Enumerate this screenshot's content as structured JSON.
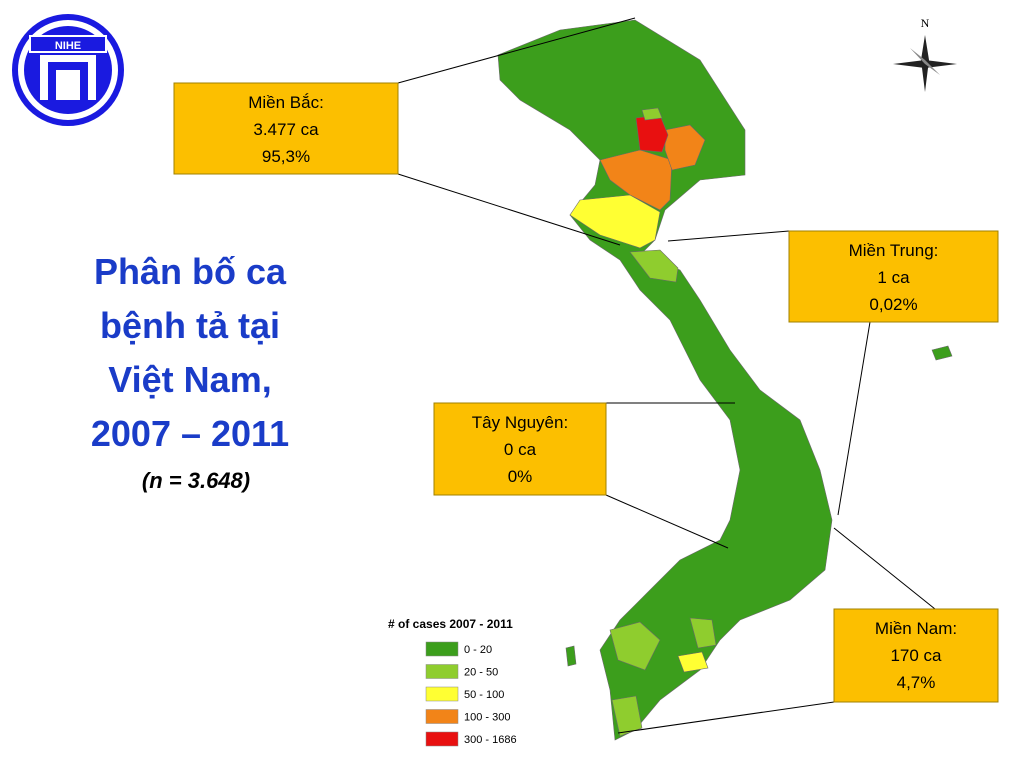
{
  "logo": "NIHE",
  "compass": "N",
  "title": [
    "Phân bố ca",
    "bệnh tả tại",
    "Việt Nam,",
    "2007 – 2011"
  ],
  "subtitle": "(n = 3.648)",
  "regions": [
    {
      "name": "Miền Bắc:",
      "cases": "3.477 ca",
      "percent": "95,3%"
    },
    {
      "name": "Miền Trung:",
      "cases": "1 ca",
      "percent": "0,02%"
    },
    {
      "name": "Tây Nguyên:",
      "cases": "0 ca",
      "percent": "0%"
    },
    {
      "name": "Miền Nam:",
      "cases": "170 ca",
      "percent": "4,7%"
    }
  ],
  "legend": {
    "title": "# of cases 2007 - 2011",
    "items": [
      {
        "label": "0 - 20",
        "color": "#3c9e1c"
      },
      {
        "label": "20 - 50",
        "color": "#8fcd2e"
      },
      {
        "label": "50 - 100",
        "color": "#ffff33"
      },
      {
        "label": "100 - 300",
        "color": "#f28418"
      },
      {
        "label": "300 - 1686",
        "color": "#e81010"
      }
    ]
  }
}
